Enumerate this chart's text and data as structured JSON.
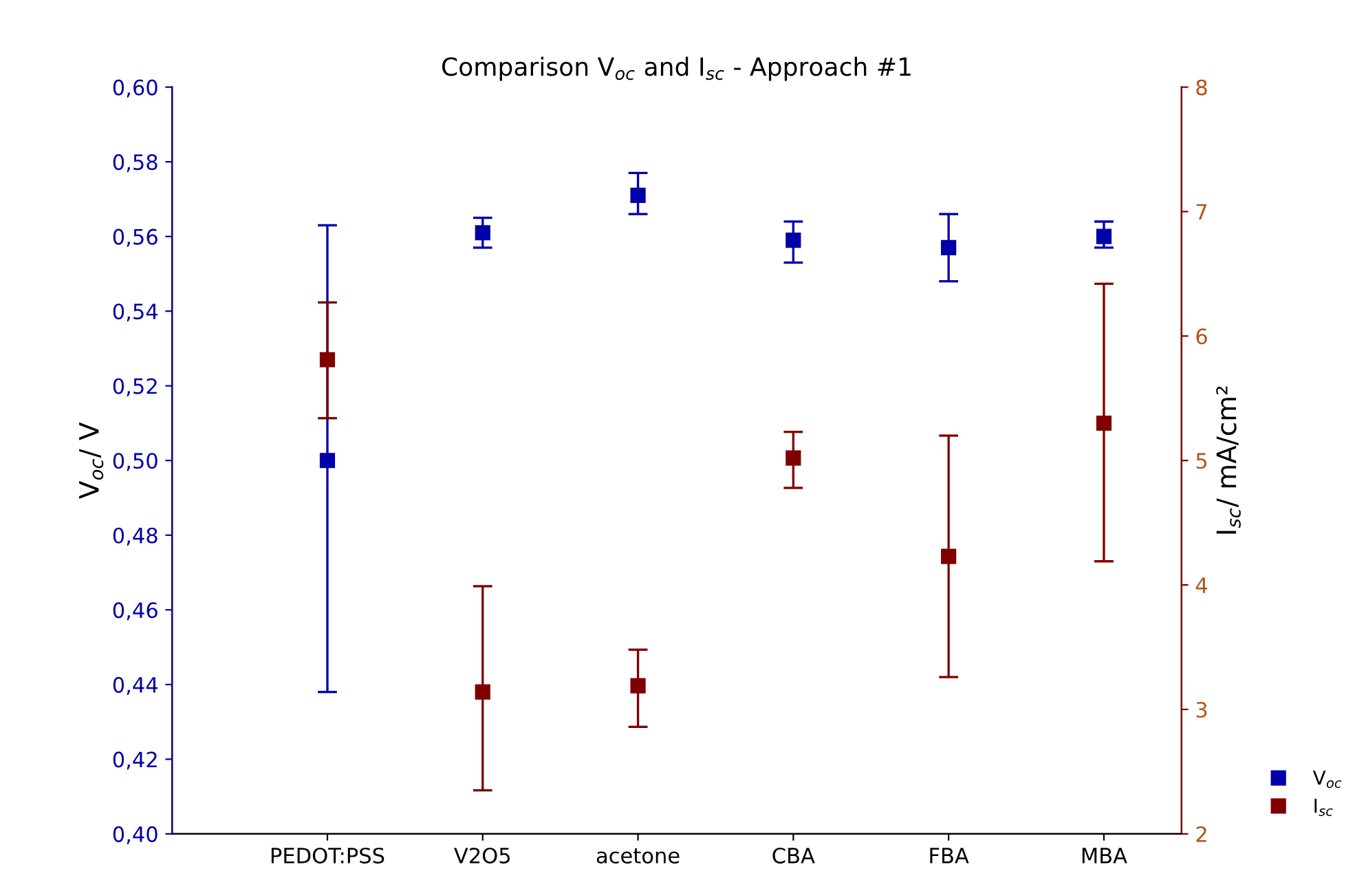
{
  "chart_data": {
    "type": "scatter",
    "title": "Comparison V$_{oc}$ and I$_{sc}$ - Approach #1",
    "ylabel": "V$_{oc}$/ V",
    "y2label": "I$_{sc}$/ mA/cm²",
    "categories": [
      "PEDOT:PSS",
      "V2O5",
      "acetone",
      "CBA",
      "FBA",
      "MBA"
    ],
    "series": [
      {
        "name": "V$_{oc}$",
        "color": "#0000a8",
        "values": [
          0.5,
          0.561,
          0.571,
          0.559,
          0.557,
          0.56
        ],
        "errors": [
          [
            0.438,
            0.563
          ],
          [
            0.557,
            0.565
          ],
          [
            0.566,
            0.577
          ],
          [
            0.553,
            0.564
          ],
          [
            0.548,
            0.566
          ],
          [
            0.557,
            0.564
          ]
        ]
      },
      {
        "name": "I$_{sc}$",
        "color": "#800000",
        "axis": "y2",
        "values": [
          5.81,
          3.14,
          3.19,
          5.02,
          4.23,
          5.3
        ],
        "errors": [
          [
            5.34,
            6.27
          ],
          [
            2.35,
            3.99
          ],
          [
            2.86,
            3.48
          ],
          [
            4.78,
            5.23
          ],
          [
            3.26,
            5.2
          ],
          [
            4.19,
            6.42
          ]
        ]
      }
    ],
    "ylim": [
      0.4,
      0.6
    ],
    "yticks": [
      {
        "value": 0.4,
        "label": "0,40"
      },
      {
        "value": 0.42,
        "label": "0,42"
      },
      {
        "value": 0.44,
        "label": "0,44"
      },
      {
        "value": 0.46,
        "label": "0,46"
      },
      {
        "value": 0.48,
        "label": "0,48"
      },
      {
        "value": 0.5,
        "label": "0,50"
      },
      {
        "value": 0.52,
        "label": "0,52"
      },
      {
        "value": 0.54,
        "label": "0,54"
      },
      {
        "value": 0.56,
        "label": "0,56"
      },
      {
        "value": 0.58,
        "label": "0,58"
      },
      {
        "value": 0.6,
        "label": "0,60"
      }
    ],
    "y2lim": [
      2,
      8
    ],
    "y2ticks": [
      2,
      3,
      4,
      5,
      6,
      7,
      8
    ],
    "marker": "square",
    "grid": false,
    "legend": "bottom right"
  }
}
